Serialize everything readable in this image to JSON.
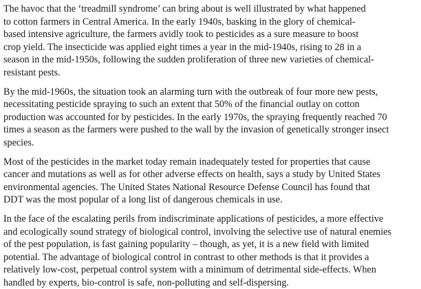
{
  "paragraphs": [
    {
      "lines": [
        "The havoc that the ‘treadmill syndrome’ can bring about is well illustrated by what happened",
        "to cotton farmers in Central America. In the early 1940s, basking in the glory of chemical-",
        "based intensive agriculture, the farmers avidly took to pesticides as a sure measure to boost",
        "crop yield. The insecticide was applied eight times a year in the mid-1940s, rising to 28 in a",
        "season in the mid-1950s, following the sudden proliferation of three new varieties of chemical-",
        "resistant pests."
      ]
    },
    {
      "lines": [
        "By the mid-1960s, the situation took an alarming turn with the outbreak of four more new pests,",
        "necessitating pesticide spraying to such an extent that 50% of the financial outlay on cotton",
        "production was accounted for by pesticides. In the early 1970s, the spraying frequently reached 70",
        "times a season as the farmers were pushed to the wall by the invasion of genetically stronger insect",
        "species."
      ]
    },
    {
      "lines": [
        "Most of the pesticides in the market today remain inadequately tested for properties that cause",
        "cancer and mutations as well as for other adverse effects on health, says a study by United States",
        "environmental agencies. The United States National Resource Defense Council has found that",
        "DDT was the most popular of a long list of dangerous chemicals in use."
      ]
    },
    {
      "lines": [
        "In the face of the escalating perils from indiscriminate applications of pesticides, a more effective",
        "and ecologically sound strategy of biological control, involving the selective use of natural enemies",
        "of the pest population, is fast gaining popularity – though, as yet, it is a new field with limited",
        "potential. The advantage of biological control in contrast to other methods is that it provides a",
        "relatively low-cost, perpetual control system with a minimum of detrimental side-effects. When",
        "handled by experts, bio-control is safe, non-polluting and self-dispersing."
      ]
    }
  ]
}
